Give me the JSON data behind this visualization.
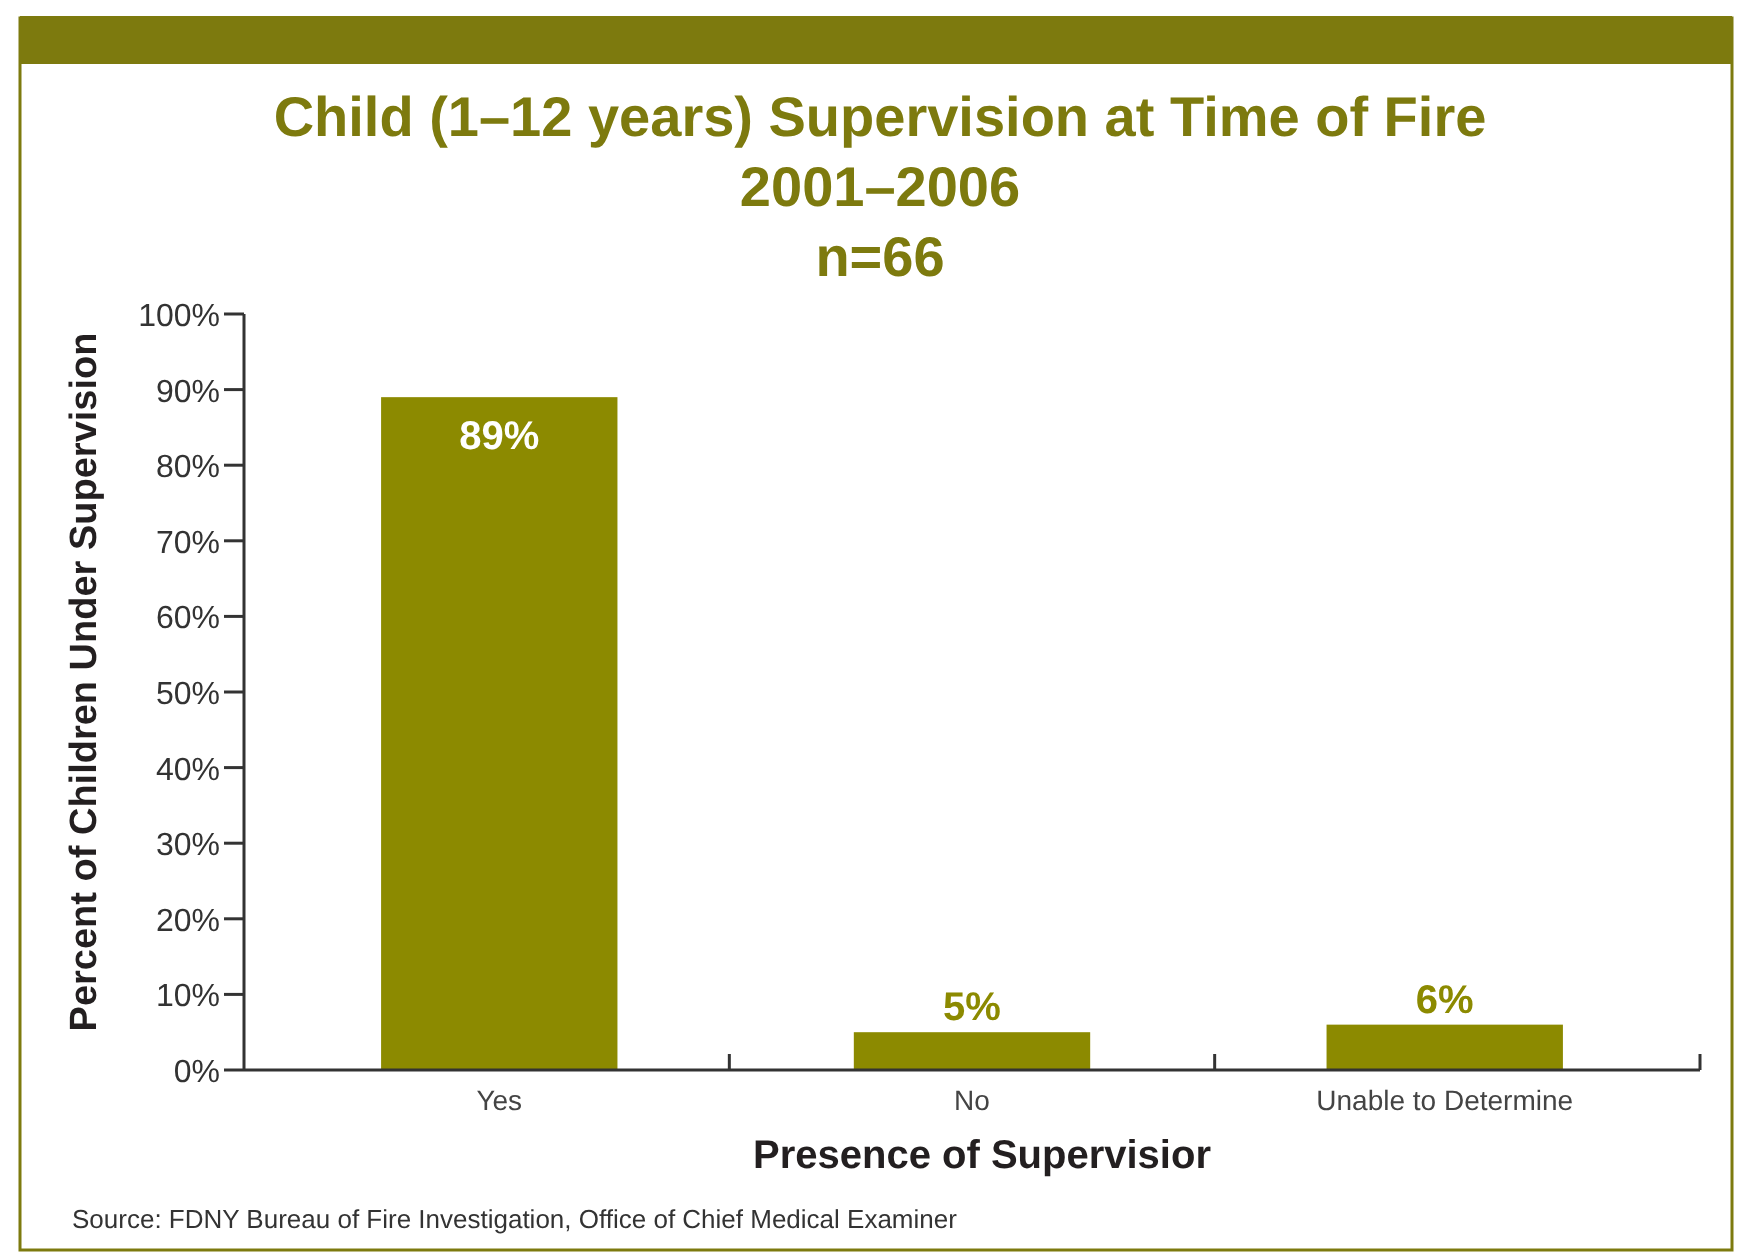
{
  "chart_data": {
    "type": "bar",
    "title": "Child (1–12 years) Supervision at Time of Fire\n2001–2006\nn=66",
    "xlabel": "Presence of Supervisior",
    "ylabel": "Percent of Children Under Supervision",
    "annotations": [
      "Source: FDNY Bureau of Fire Investigation, Office of Chief Medical Examiner"
    ],
    "categories": [
      "Yes",
      "No",
      "Unable to Determine"
    ],
    "values": [
      89,
      5,
      6
    ],
    "value_labels": [
      "89%",
      "5%",
      "6%"
    ],
    "color": "#8c8a00",
    "ylim": [
      0,
      100
    ],
    "yticks": [
      {
        "value": 0,
        "label": "0%"
      },
      {
        "value": 10,
        "label": "10%"
      },
      {
        "value": 20,
        "label": "20%"
      },
      {
        "value": 30,
        "label": "30%"
      },
      {
        "value": 40,
        "label": "40%"
      },
      {
        "value": 50,
        "label": "50%"
      },
      {
        "value": 60,
        "label": "60%"
      },
      {
        "value": 70,
        "label": "70%"
      },
      {
        "value": 80,
        "label": "80%"
      },
      {
        "value": 90,
        "label": "90%"
      },
      {
        "value": 100,
        "label": "100%"
      }
    ]
  }
}
